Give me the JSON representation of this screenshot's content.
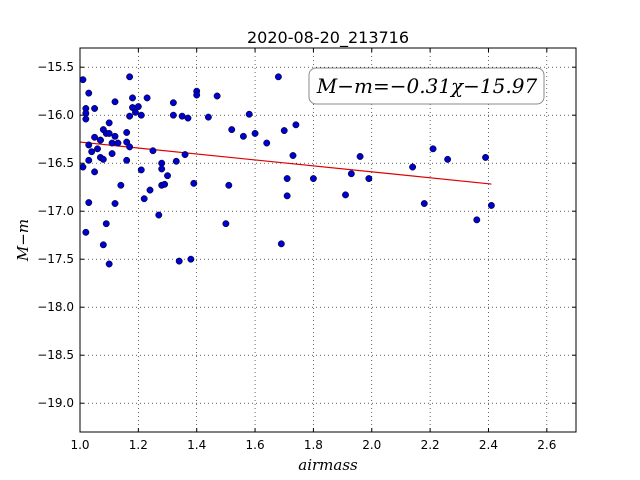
{
  "chart_data": {
    "type": "scatter",
    "title": "2020-08-20_213716",
    "xlabel": "airmass",
    "ylabel": "M−m",
    "xlim": [
      1.0,
      2.7
    ],
    "ylim": [
      -19.3,
      -15.3
    ],
    "x_ticks": [
      "1.0",
      "1.2",
      "1.4",
      "1.6",
      "1.8",
      "2.0",
      "2.2",
      "2.4",
      "2.6"
    ],
    "y_ticks": [
      "−15.5",
      "−16.0",
      "−16.5",
      "−17.0",
      "−17.5",
      "−18.0",
      "−18.5",
      "−19.0"
    ],
    "grid": true,
    "annotation": "M−m=−0.31χ−15.97",
    "marker_color": "#0000cc",
    "fit_color": "#dd0000",
    "fit": {
      "slope": -0.31,
      "intercept": -15.97,
      "x_range": [
        1.0,
        2.41
      ]
    },
    "points": [
      [
        1.01,
        -15.63
      ],
      [
        1.01,
        -16.54
      ],
      [
        1.02,
        -15.93
      ],
      [
        1.02,
        -15.98
      ],
      [
        1.02,
        -16.04
      ],
      [
        1.02,
        -17.22
      ],
      [
        1.03,
        -16.31
      ],
      [
        1.03,
        -16.47
      ],
      [
        1.03,
        -16.91
      ],
      [
        1.03,
        -15.77
      ],
      [
        1.04,
        -16.38
      ],
      [
        1.05,
        -16.23
      ],
      [
        1.05,
        -15.93
      ],
      [
        1.05,
        -16.59
      ],
      [
        1.06,
        -16.35
      ],
      [
        1.07,
        -16.26
      ],
      [
        1.07,
        -16.26
      ],
      [
        1.07,
        -16.44
      ],
      [
        1.08,
        -16.15
      ],
      [
        1.08,
        -16.46
      ],
      [
        1.08,
        -17.35
      ],
      [
        1.09,
        -16.19
      ],
      [
        1.09,
        -17.13
      ],
      [
        1.1,
        -16.08
      ],
      [
        1.1,
        -16.19
      ],
      [
        1.1,
        -17.55
      ],
      [
        1.11,
        -16.29
      ],
      [
        1.11,
        -16.4
      ],
      [
        1.12,
        -16.22
      ],
      [
        1.12,
        -15.86
      ],
      [
        1.12,
        -16.92
      ],
      [
        1.13,
        -16.29
      ],
      [
        1.14,
        -16.73
      ],
      [
        1.16,
        -16.18
      ],
      [
        1.16,
        -16.28
      ],
      [
        1.16,
        -16.47
      ],
      [
        1.17,
        -16.01
      ],
      [
        1.17,
        -15.6
      ],
      [
        1.17,
        -16.33
      ],
      [
        1.18,
        -15.82
      ],
      [
        1.18,
        -15.92
      ],
      [
        1.19,
        -15.97
      ],
      [
        1.2,
        -15.91
      ],
      [
        1.21,
        -16.0
      ],
      [
        1.21,
        -16.57
      ],
      [
        1.22,
        -16.87
      ],
      [
        1.23,
        -15.82
      ],
      [
        1.24,
        -16.78
      ],
      [
        1.25,
        -16.37
      ],
      [
        1.27,
        -17.04
      ],
      [
        1.28,
        -16.5
      ],
      [
        1.28,
        -16.56
      ],
      [
        1.28,
        -16.73
      ],
      [
        1.29,
        -16.72
      ],
      [
        1.3,
        -16.63
      ],
      [
        1.32,
        -15.87
      ],
      [
        1.32,
        -16.0
      ],
      [
        1.33,
        -16.48
      ],
      [
        1.34,
        -17.52
      ],
      [
        1.35,
        -16.01
      ],
      [
        1.36,
        -16.41
      ],
      [
        1.37,
        -16.03
      ],
      [
        1.38,
        -17.5
      ],
      [
        1.39,
        -16.71
      ],
      [
        1.4,
        -15.75
      ],
      [
        1.4,
        -15.79
      ],
      [
        1.44,
        -16.02
      ],
      [
        1.47,
        -15.8
      ],
      [
        1.5,
        -17.13
      ],
      [
        1.51,
        -16.73
      ],
      [
        1.52,
        -16.15
      ],
      [
        1.56,
        -16.22
      ],
      [
        1.58,
        -15.99
      ],
      [
        1.6,
        -16.19
      ],
      [
        1.64,
        -16.29
      ],
      [
        1.68,
        -15.6
      ],
      [
        1.69,
        -17.34
      ],
      [
        1.7,
        -16.16
      ],
      [
        1.71,
        -16.66
      ],
      [
        1.71,
        -16.84
      ],
      [
        1.73,
        -16.42
      ],
      [
        1.74,
        -16.1
      ],
      [
        1.8,
        -16.66
      ],
      [
        1.91,
        -16.83
      ],
      [
        1.93,
        -16.61
      ],
      [
        1.96,
        -16.43
      ],
      [
        1.99,
        -16.66
      ],
      [
        2.14,
        -16.54
      ],
      [
        2.18,
        -16.92
      ],
      [
        2.21,
        -16.35
      ],
      [
        2.26,
        -16.46
      ],
      [
        2.36,
        -17.09
      ],
      [
        2.39,
        -16.44
      ],
      [
        2.41,
        -16.94
      ]
    ]
  }
}
